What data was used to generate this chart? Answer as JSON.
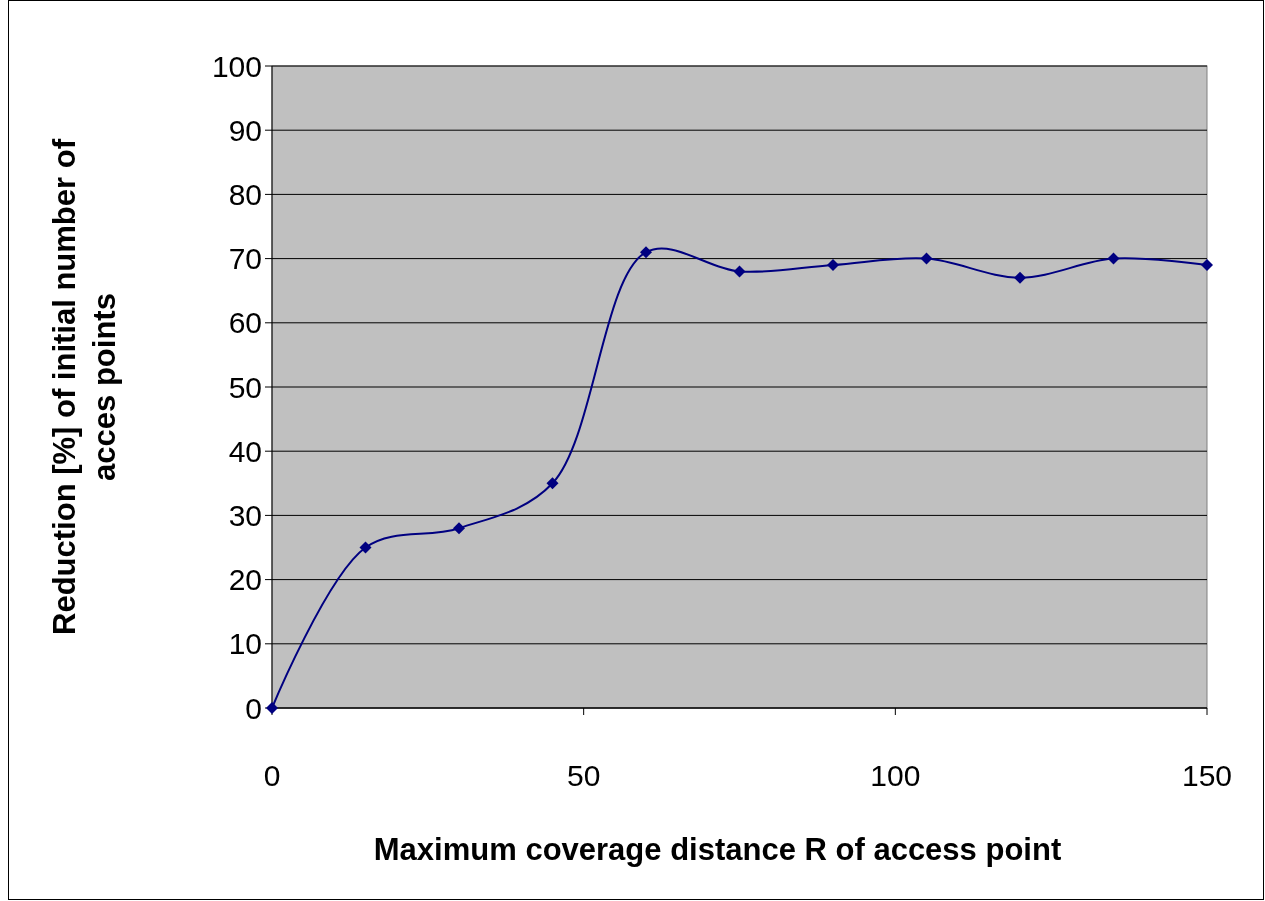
{
  "chart_data": {
    "type": "line",
    "xlabel": "Maximum coverage distance R of access point",
    "ylabel": "Reduction [%] of initial number of acces points",
    "x": [
      0,
      15,
      30,
      45,
      60,
      75,
      90,
      105,
      120,
      135,
      150
    ],
    "series": [
      {
        "color": "#000080",
        "values": [
          0,
          25,
          28,
          35,
          71,
          68,
          69,
          70,
          67,
          70,
          69
        ]
      }
    ],
    "xlim": [
      0,
      150
    ],
    "xticks": [
      0,
      50,
      100,
      150
    ],
    "ylim": [
      0,
      100
    ],
    "yticks": [
      0,
      10,
      20,
      30,
      40,
      50,
      60,
      70,
      80,
      90,
      100
    ],
    "grid": "y",
    "marker": "diamond",
    "line_style": "solid"
  }
}
